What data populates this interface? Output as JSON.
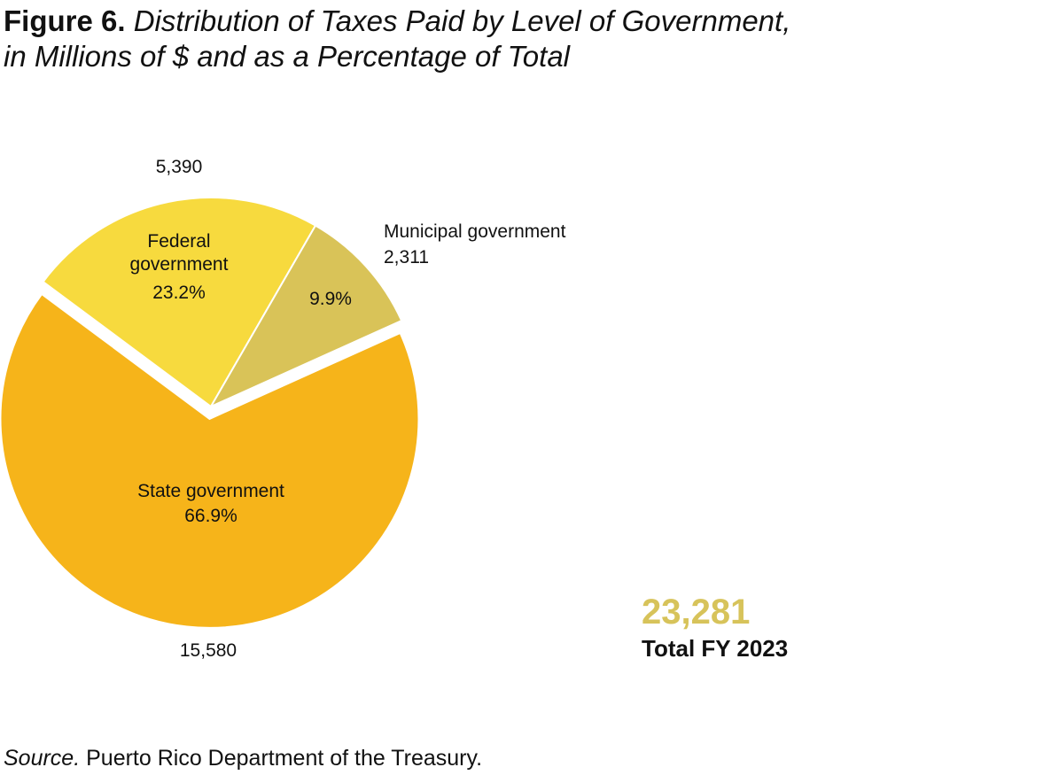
{
  "title": {
    "figure": "Figure 6.",
    "line1": "Distribution of Taxes Paid by Level of Government,",
    "line2": "in Millions of $ and as a Percentage of Total"
  },
  "chart_data": {
    "type": "pie",
    "unit": "Millions of $",
    "slices": [
      {
        "name": "Municipal government",
        "value": 2311,
        "value_label": "2,311",
        "percent_label": "9.9%",
        "color": "#D9C358"
      },
      {
        "name": "State government",
        "value": 15580,
        "value_label": "15,580",
        "percent_label": "66.9%",
        "color": "#F6B41A"
      },
      {
        "name": "Federal government",
        "value": 5390,
        "value_label": "5,390",
        "percent_label": "23.2%",
        "color": "#F7DA3E"
      }
    ],
    "exploded": "State government",
    "total": {
      "value": "23,281",
      "label": "Total FY 2023",
      "color": "#D7C35A"
    }
  },
  "source": {
    "lead": "Source.",
    "text": " Puerto Rico Department of the Treasury."
  }
}
